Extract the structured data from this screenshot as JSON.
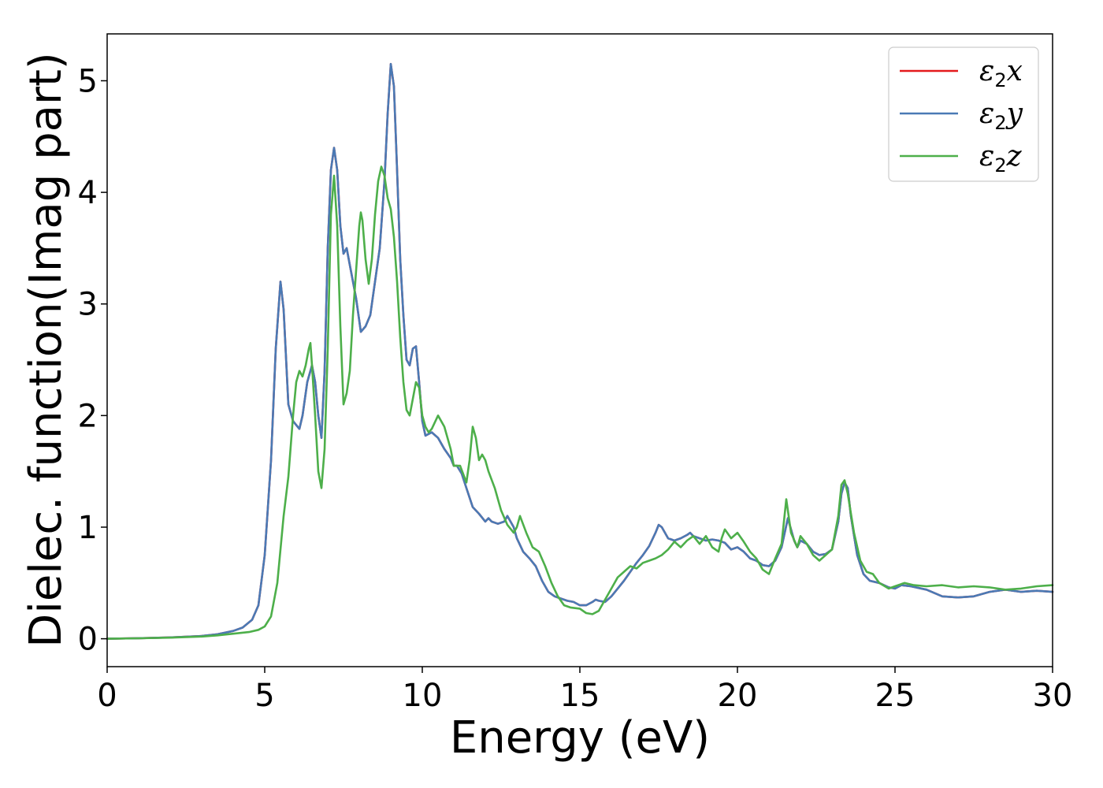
{
  "chart_data": {
    "type": "line",
    "title": "",
    "xlabel": "Energy (eV)",
    "ylabel": "Dielec. function(Imag part)",
    "xlim": [
      0,
      30
    ],
    "ylim": [
      -0.25,
      5.42
    ],
    "xticks": [
      0,
      5,
      10,
      15,
      20,
      25,
      30
    ],
    "yticks": [
      0,
      1,
      2,
      3,
      4,
      5
    ],
    "xtick_labels": [
      "0",
      "5",
      "10",
      "15",
      "20",
      "25",
      "30"
    ],
    "ytick_labels": [
      "0",
      "1",
      "2",
      "3",
      "4",
      "5"
    ],
    "grid": false,
    "legend_position": "top-right",
    "series": [
      {
        "name": "ε2x",
        "legend": {
          "symbol": "ε",
          "sub": "2",
          "axis": "x"
        },
        "color": "#e41a1c",
        "x": [
          0,
          1,
          2,
          3,
          3.5,
          4,
          4.3,
          4.6,
          4.8,
          5.0,
          5.2,
          5.35,
          5.5,
          5.6,
          5.75,
          5.9,
          6.1,
          6.2,
          6.35,
          6.5,
          6.6,
          6.7,
          6.8,
          6.9,
          7.0,
          7.1,
          7.2,
          7.3,
          7.4,
          7.5,
          7.6,
          7.7,
          7.8,
          7.9,
          8.05,
          8.2,
          8.35,
          8.5,
          8.65,
          8.8,
          8.9,
          9.0,
          9.1,
          9.2,
          9.3,
          9.4,
          9.5,
          9.6,
          9.7,
          9.8,
          9.9,
          10.0,
          10.1,
          10.3,
          10.5,
          10.7,
          10.9,
          11.0,
          11.1,
          11.25,
          11.4,
          11.6,
          11.8,
          12.0,
          12.1,
          12.2,
          12.4,
          12.6,
          12.7,
          12.8,
          12.9,
          13.0,
          13.2,
          13.4,
          13.6,
          13.8,
          14.0,
          14.2,
          14.4,
          14.6,
          14.8,
          15.0,
          15.2,
          15.4,
          15.5,
          15.6,
          15.8,
          16.0,
          16.2,
          16.4,
          16.6,
          16.8,
          17.0,
          17.2,
          17.4,
          17.5,
          17.6,
          17.8,
          18.0,
          18.2,
          18.4,
          18.5,
          18.6,
          18.8,
          19.0,
          19.2,
          19.4,
          19.6,
          19.8,
          20.0,
          20.2,
          20.4,
          20.6,
          20.8,
          21.0,
          21.2,
          21.4,
          21.6,
          21.8,
          21.9,
          22.0,
          22.2,
          22.4,
          22.6,
          22.8,
          23.0,
          23.2,
          23.3,
          23.4,
          23.5,
          23.6,
          23.8,
          24.0,
          24.2,
          24.5,
          24.8,
          25.0,
          25.2,
          25.5,
          26.0,
          26.5,
          27.0,
          27.5,
          28.0,
          28.5,
          29.0,
          29.5,
          30.0
        ],
        "y": [
          0,
          0.005,
          0.012,
          0.025,
          0.04,
          0.07,
          0.1,
          0.17,
          0.3,
          0.75,
          1.6,
          2.6,
          3.2,
          2.95,
          2.1,
          1.95,
          1.88,
          2.0,
          2.3,
          2.45,
          2.3,
          2.0,
          1.8,
          2.4,
          3.5,
          4.2,
          4.4,
          4.2,
          3.7,
          3.45,
          3.5,
          3.35,
          3.2,
          3.05,
          2.75,
          2.8,
          2.9,
          3.2,
          3.5,
          4.1,
          4.7,
          5.15,
          4.95,
          4.2,
          3.4,
          2.9,
          2.5,
          2.45,
          2.6,
          2.62,
          2.3,
          1.95,
          1.82,
          1.85,
          1.8,
          1.7,
          1.62,
          1.55,
          1.55,
          1.48,
          1.35,
          1.18,
          1.12,
          1.05,
          1.08,
          1.05,
          1.03,
          1.05,
          1.1,
          1.05,
          1.0,
          0.9,
          0.78,
          0.72,
          0.65,
          0.52,
          0.42,
          0.38,
          0.36,
          0.34,
          0.33,
          0.3,
          0.3,
          0.33,
          0.35,
          0.34,
          0.33,
          0.38,
          0.45,
          0.52,
          0.6,
          0.68,
          0.75,
          0.83,
          0.95,
          1.02,
          1.0,
          0.9,
          0.88,
          0.9,
          0.93,
          0.95,
          0.92,
          0.9,
          0.88,
          0.89,
          0.88,
          0.86,
          0.8,
          0.82,
          0.78,
          0.72,
          0.7,
          0.66,
          0.65,
          0.7,
          0.82,
          1.08,
          0.88,
          0.82,
          0.88,
          0.85,
          0.78,
          0.75,
          0.76,
          0.8,
          1.05,
          1.3,
          1.4,
          1.35,
          1.1,
          0.75,
          0.58,
          0.52,
          0.5,
          0.46,
          0.45,
          0.48,
          0.47,
          0.44,
          0.38,
          0.37,
          0.38,
          0.42,
          0.44,
          0.42,
          0.43,
          0.42
        ]
      },
      {
        "name": "ε2y",
        "legend": {
          "symbol": "ε",
          "sub": "2",
          "axis": "y"
        },
        "color": "#4a7ab5",
        "x": [
          0,
          1,
          2,
          3,
          3.5,
          4,
          4.3,
          4.6,
          4.8,
          5.0,
          5.2,
          5.35,
          5.5,
          5.6,
          5.75,
          5.9,
          6.1,
          6.2,
          6.35,
          6.5,
          6.6,
          6.7,
          6.8,
          6.9,
          7.0,
          7.1,
          7.2,
          7.3,
          7.4,
          7.5,
          7.6,
          7.7,
          7.8,
          7.9,
          8.05,
          8.2,
          8.35,
          8.5,
          8.65,
          8.8,
          8.9,
          9.0,
          9.1,
          9.2,
          9.3,
          9.4,
          9.5,
          9.6,
          9.7,
          9.8,
          9.9,
          10.0,
          10.1,
          10.3,
          10.5,
          10.7,
          10.9,
          11.0,
          11.1,
          11.25,
          11.4,
          11.6,
          11.8,
          12.0,
          12.1,
          12.2,
          12.4,
          12.6,
          12.7,
          12.8,
          12.9,
          13.0,
          13.2,
          13.4,
          13.6,
          13.8,
          14.0,
          14.2,
          14.4,
          14.6,
          14.8,
          15.0,
          15.2,
          15.4,
          15.5,
          15.6,
          15.8,
          16.0,
          16.2,
          16.4,
          16.6,
          16.8,
          17.0,
          17.2,
          17.4,
          17.5,
          17.6,
          17.8,
          18.0,
          18.2,
          18.4,
          18.5,
          18.6,
          18.8,
          19.0,
          19.2,
          19.4,
          19.6,
          19.8,
          20.0,
          20.2,
          20.4,
          20.6,
          20.8,
          21.0,
          21.2,
          21.4,
          21.6,
          21.8,
          21.9,
          22.0,
          22.2,
          22.4,
          22.6,
          22.8,
          23.0,
          23.2,
          23.3,
          23.4,
          23.5,
          23.6,
          23.8,
          24.0,
          24.2,
          24.5,
          24.8,
          25.0,
          25.2,
          25.5,
          26.0,
          26.5,
          27.0,
          27.5,
          28.0,
          28.5,
          29.0,
          29.5,
          30.0
        ],
        "y": [
          0,
          0.005,
          0.012,
          0.025,
          0.04,
          0.07,
          0.1,
          0.17,
          0.3,
          0.75,
          1.6,
          2.6,
          3.2,
          2.95,
          2.1,
          1.95,
          1.88,
          2.0,
          2.3,
          2.45,
          2.3,
          2.0,
          1.8,
          2.4,
          3.5,
          4.2,
          4.4,
          4.2,
          3.7,
          3.45,
          3.5,
          3.35,
          3.2,
          3.05,
          2.75,
          2.8,
          2.9,
          3.2,
          3.5,
          4.1,
          4.7,
          5.15,
          4.95,
          4.2,
          3.4,
          2.9,
          2.5,
          2.45,
          2.6,
          2.62,
          2.3,
          1.95,
          1.82,
          1.85,
          1.8,
          1.7,
          1.62,
          1.55,
          1.55,
          1.48,
          1.35,
          1.18,
          1.12,
          1.05,
          1.08,
          1.05,
          1.03,
          1.05,
          1.1,
          1.05,
          1.0,
          0.9,
          0.78,
          0.72,
          0.65,
          0.52,
          0.42,
          0.38,
          0.36,
          0.34,
          0.33,
          0.3,
          0.3,
          0.33,
          0.35,
          0.34,
          0.33,
          0.38,
          0.45,
          0.52,
          0.6,
          0.68,
          0.75,
          0.83,
          0.95,
          1.02,
          1.0,
          0.9,
          0.88,
          0.9,
          0.93,
          0.95,
          0.92,
          0.9,
          0.88,
          0.89,
          0.88,
          0.86,
          0.8,
          0.82,
          0.78,
          0.72,
          0.7,
          0.66,
          0.65,
          0.7,
          0.82,
          1.08,
          0.88,
          0.82,
          0.88,
          0.85,
          0.78,
          0.75,
          0.76,
          0.8,
          1.05,
          1.3,
          1.4,
          1.35,
          1.1,
          0.75,
          0.58,
          0.52,
          0.5,
          0.46,
          0.45,
          0.48,
          0.47,
          0.44,
          0.38,
          0.37,
          0.38,
          0.42,
          0.44,
          0.42,
          0.43,
          0.42
        ]
      },
      {
        "name": "ε2z",
        "legend": {
          "symbol": "ε",
          "sub": "2",
          "axis": "z"
        },
        "color": "#4daf4a",
        "x": [
          0,
          1,
          2,
          3,
          3.5,
          4,
          4.5,
          4.8,
          5.0,
          5.2,
          5.4,
          5.6,
          5.75,
          5.9,
          6.0,
          6.1,
          6.2,
          6.3,
          6.4,
          6.45,
          6.5,
          6.6,
          6.7,
          6.8,
          6.9,
          7.0,
          7.1,
          7.2,
          7.3,
          7.4,
          7.5,
          7.6,
          7.7,
          7.8,
          7.9,
          8.0,
          8.05,
          8.1,
          8.2,
          8.3,
          8.4,
          8.5,
          8.6,
          8.7,
          8.8,
          8.9,
          9.0,
          9.1,
          9.2,
          9.3,
          9.4,
          9.5,
          9.6,
          9.7,
          9.8,
          9.9,
          10.0,
          10.1,
          10.2,
          10.3,
          10.5,
          10.7,
          10.9,
          11.0,
          11.2,
          11.4,
          11.5,
          11.6,
          11.7,
          11.8,
          11.9,
          12.0,
          12.1,
          12.3,
          12.5,
          12.7,
          12.9,
          13.0,
          13.1,
          13.3,
          13.5,
          13.7,
          13.9,
          14.1,
          14.3,
          14.5,
          14.7,
          15.0,
          15.2,
          15.4,
          15.6,
          15.8,
          16.0,
          16.2,
          16.4,
          16.6,
          16.8,
          17.0,
          17.2,
          17.4,
          17.6,
          17.8,
          18.0,
          18.2,
          18.4,
          18.6,
          18.8,
          19.0,
          19.2,
          19.4,
          19.5,
          19.6,
          19.8,
          20.0,
          20.2,
          20.4,
          20.6,
          20.8,
          21.0,
          21.2,
          21.4,
          21.55,
          21.7,
          21.9,
          22.0,
          22.2,
          22.4,
          22.6,
          22.8,
          23.0,
          23.2,
          23.3,
          23.4,
          23.5,
          23.7,
          23.9,
          24.1,
          24.3,
          24.5,
          24.8,
          25.0,
          25.3,
          25.6,
          26.0,
          26.5,
          27.0,
          27.5,
          28.0,
          28.5,
          29.0,
          29.5,
          30.0
        ],
        "y": [
          0,
          0.004,
          0.01,
          0.02,
          0.03,
          0.045,
          0.06,
          0.08,
          0.11,
          0.2,
          0.5,
          1.1,
          1.45,
          2.0,
          2.3,
          2.4,
          2.35,
          2.45,
          2.6,
          2.65,
          2.45,
          2.0,
          1.5,
          1.35,
          1.7,
          2.6,
          3.8,
          4.15,
          3.7,
          2.8,
          2.1,
          2.2,
          2.4,
          2.9,
          3.3,
          3.7,
          3.82,
          3.75,
          3.4,
          3.18,
          3.4,
          3.8,
          4.1,
          4.23,
          4.15,
          3.95,
          3.85,
          3.6,
          3.2,
          2.7,
          2.3,
          2.05,
          2.0,
          2.15,
          2.3,
          2.25,
          2.0,
          1.9,
          1.85,
          1.88,
          2.0,
          1.9,
          1.7,
          1.55,
          1.55,
          1.4,
          1.6,
          1.9,
          1.8,
          1.6,
          1.65,
          1.6,
          1.5,
          1.35,
          1.15,
          1.02,
          0.95,
          1.0,
          1.1,
          0.95,
          0.82,
          0.78,
          0.65,
          0.5,
          0.38,
          0.3,
          0.28,
          0.27,
          0.23,
          0.22,
          0.25,
          0.35,
          0.45,
          0.55,
          0.6,
          0.65,
          0.63,
          0.68,
          0.7,
          0.72,
          0.75,
          0.8,
          0.87,
          0.82,
          0.88,
          0.92,
          0.85,
          0.92,
          0.82,
          0.78,
          0.9,
          0.98,
          0.9,
          0.95,
          0.87,
          0.78,
          0.72,
          0.62,
          0.58,
          0.72,
          0.85,
          1.25,
          0.95,
          0.82,
          0.92,
          0.85,
          0.75,
          0.7,
          0.75,
          0.8,
          1.1,
          1.38,
          1.42,
          1.3,
          0.95,
          0.7,
          0.6,
          0.58,
          0.5,
          0.45,
          0.47,
          0.5,
          0.48,
          0.47,
          0.48,
          0.46,
          0.47,
          0.46,
          0.44,
          0.45,
          0.47,
          0.48
        ]
      }
    ]
  }
}
